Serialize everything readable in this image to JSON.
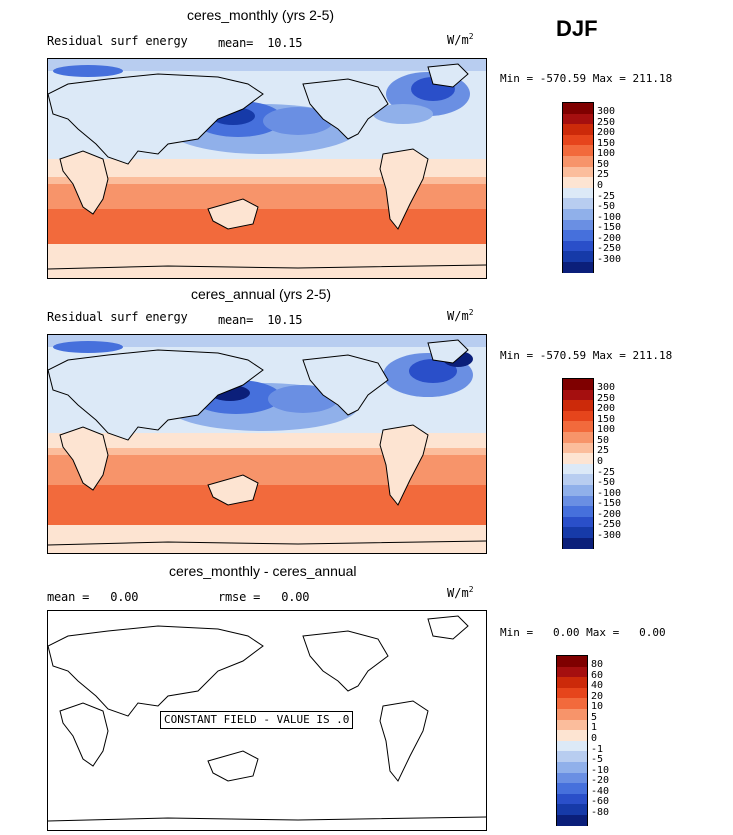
{
  "season": "DJF",
  "panels": [
    {
      "title": "ceres_monthly (yrs 2-5)",
      "left_label": "Residual surf energy",
      "mean_label": "mean=",
      "mean_value": "10.15",
      "units": "W/m",
      "units_exp": "2",
      "min_label": "Min =",
      "min_value": "-570.59",
      "max_label": "Max =",
      "max_value": "211.18",
      "colorbar": [
        "300",
        "250",
        "200",
        "150",
        "100",
        "50",
        "25",
        "0",
        "-25",
        "-50",
        "-100",
        "-150",
        "-200",
        "-250",
        "-300"
      ]
    },
    {
      "title": "ceres_annual (yrs 2-5)",
      "left_label": "Residual surf energy",
      "mean_label": "mean=",
      "mean_value": "10.15",
      "units": "W/m",
      "units_exp": "2",
      "min_label": "Min =",
      "min_value": "-570.59",
      "max_label": "Max =",
      "max_value": "211.18",
      "colorbar": [
        "300",
        "250",
        "200",
        "150",
        "100",
        "50",
        "25",
        "0",
        "-25",
        "-50",
        "-100",
        "-150",
        "-200",
        "-250",
        "-300"
      ]
    },
    {
      "title": "ceres_monthly - ceres_annual",
      "mean_label": "mean =",
      "mean_value": "0.00",
      "rmse_label": "rmse =",
      "rmse_value": "0.00",
      "units": "W/m",
      "units_exp": "2",
      "min_label": "Min =",
      "min_value": "0.00",
      "max_label": "Max =",
      "max_value": "0.00",
      "constant_text": "CONSTANT FIELD - VALUE IS .0",
      "colorbar": [
        "80",
        "60",
        "40",
        "20",
        "10",
        "5",
        "1",
        "0",
        "-1",
        "-5",
        "-10",
        "-20",
        "-40",
        "-60",
        "-80"
      ]
    }
  ],
  "colors": {
    "scale": [
      "#7f0000",
      "#a50f0f",
      "#cc2a0a",
      "#e6451c",
      "#f26a3c",
      "#f7946a",
      "#fbbd9c",
      "#fde4d2",
      "#dce9f7",
      "#b8cdf0",
      "#90b0ea",
      "#6a8fe3",
      "#4670dc",
      "#2a4fc9",
      "#163aa8",
      "#0b1f7a"
    ],
    "land": "#dbe9f8",
    "ocean_warm": "#f58b63"
  }
}
